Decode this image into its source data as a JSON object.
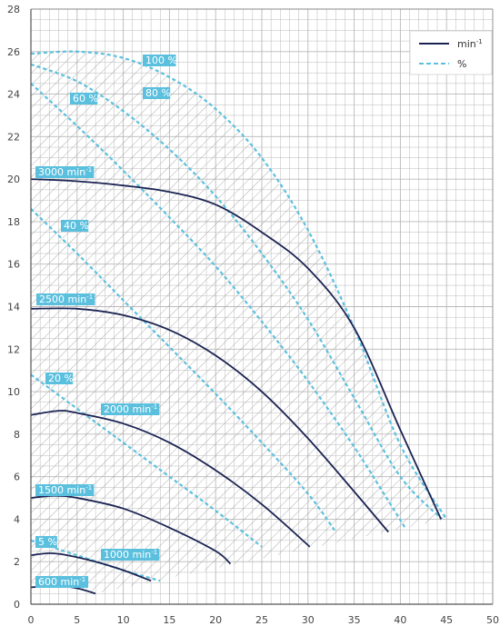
{
  "chart_data": {
    "type": "line",
    "xlim": [
      0,
      50
    ],
    "ylim": [
      0,
      28
    ],
    "x_ticks": [
      "0",
      "5",
      "10",
      "15",
      "20",
      "25",
      "30",
      "35",
      "40",
      "45",
      "50"
    ],
    "y_ticks": [
      "0",
      "2",
      "4",
      "6",
      "8",
      "10",
      "12",
      "14",
      "16",
      "18",
      "20",
      "22",
      "24",
      "26",
      "28"
    ],
    "grid": true,
    "legend_position": "top-right",
    "legend": [
      {
        "label": "min",
        "sup": "-1",
        "style": "solid",
        "color": "#1b2352"
      },
      {
        "label": "%",
        "style": "dashed",
        "color": "#5bc0de"
      }
    ],
    "colors": {
      "speed": "#1b2352",
      "efficiency": "#5bc0de",
      "tag_bg": "#5bc0de",
      "grid": "#b9b9b9",
      "hatch": "#9a9a9a"
    },
    "speed_curves": [
      {
        "label": "3000 min",
        "sup": "-1",
        "points": [
          [
            0,
            20.0
          ],
          [
            5,
            19.9
          ],
          [
            10,
            19.7
          ],
          [
            15,
            19.4
          ],
          [
            20,
            18.8
          ],
          [
            25,
            17.5
          ],
          [
            30,
            15.8
          ],
          [
            35,
            13.0
          ],
          [
            40,
            8.2
          ],
          [
            44.4,
            4.0
          ]
        ]
      },
      {
        "label": "2500 min",
        "sup": "-1",
        "points": [
          [
            0,
            13.9
          ],
          [
            5,
            13.9
          ],
          [
            10,
            13.6
          ],
          [
            15,
            12.9
          ],
          [
            20,
            11.7
          ],
          [
            25,
            10.0
          ],
          [
            30,
            7.8
          ],
          [
            35,
            5.3
          ],
          [
            38.7,
            3.4
          ]
        ]
      },
      {
        "label": "2000 min",
        "sup": "-1",
        "points": [
          [
            0,
            8.9
          ],
          [
            3,
            9.1
          ],
          [
            5,
            9.0
          ],
          [
            10,
            8.5
          ],
          [
            15,
            7.6
          ],
          [
            20,
            6.3
          ],
          [
            25,
            4.7
          ],
          [
            30.2,
            2.7
          ]
        ]
      },
      {
        "label": "1500 min",
        "sup": "-1",
        "points": [
          [
            0,
            5.0
          ],
          [
            2.5,
            5.1
          ],
          [
            5,
            5.0
          ],
          [
            10,
            4.5
          ],
          [
            15,
            3.6
          ],
          [
            20,
            2.5
          ],
          [
            21.6,
            1.9
          ]
        ]
      },
      {
        "label": "1000 min",
        "sup": "-1",
        "points": [
          [
            0,
            2.3
          ],
          [
            2,
            2.4
          ],
          [
            4,
            2.3
          ],
          [
            7,
            2.0
          ],
          [
            10,
            1.6
          ],
          [
            13,
            1.1
          ]
        ]
      },
      {
        "label": "600 min",
        "sup": "-1",
        "points": [
          [
            0,
            0.8
          ],
          [
            3,
            0.85
          ],
          [
            5,
            0.75
          ],
          [
            7,
            0.5
          ]
        ]
      }
    ],
    "efficiency_curves": [
      {
        "label": "100 %",
        "points": [
          [
            0,
            25.9
          ],
          [
            5,
            26.0
          ],
          [
            10,
            25.7
          ],
          [
            15,
            24.8
          ],
          [
            20,
            23.3
          ],
          [
            25,
            21.0
          ],
          [
            30,
            17.6
          ],
          [
            35,
            13.0
          ],
          [
            40,
            7.5
          ],
          [
            45,
            4.0
          ]
        ]
      },
      {
        "label": "80 %",
        "points": [
          [
            0,
            25.4
          ],
          [
            5,
            24.6
          ],
          [
            10,
            23.2
          ],
          [
            15,
            21.4
          ],
          [
            20,
            19.2
          ],
          [
            25,
            16.5
          ],
          [
            30,
            13.4
          ],
          [
            35,
            9.7
          ],
          [
            40,
            6.0
          ],
          [
            44.5,
            4.0
          ]
        ]
      },
      {
        "label": "60 %",
        "points": [
          [
            0,
            24.5
          ],
          [
            5,
            22.5
          ],
          [
            10,
            20.4
          ],
          [
            15,
            18.2
          ],
          [
            20,
            15.9
          ],
          [
            25,
            13.3
          ],
          [
            30,
            10.5
          ],
          [
            35,
            7.4
          ],
          [
            38.5,
            5.0
          ],
          [
            40.5,
            3.6
          ]
        ]
      },
      {
        "label": "40 %",
        "points": [
          [
            0,
            18.6
          ],
          [
            5,
            16.5
          ],
          [
            10,
            14.3
          ],
          [
            15,
            12.1
          ],
          [
            20,
            9.9
          ],
          [
            25,
            7.6
          ],
          [
            30,
            5.2
          ],
          [
            33,
            3.4
          ]
        ]
      },
      {
        "label": "20 %",
        "points": [
          [
            0,
            10.8
          ],
          [
            5,
            9.2
          ],
          [
            10,
            7.6
          ],
          [
            15,
            6.0
          ],
          [
            20,
            4.4
          ],
          [
            25,
            2.7
          ]
        ]
      },
      {
        "label": "5 %",
        "points": [
          [
            0,
            3.0
          ],
          [
            5,
            2.3
          ],
          [
            10,
            1.6
          ],
          [
            14,
            1.1
          ]
        ]
      }
    ],
    "operating_region": [
      [
        0,
        0.8
      ],
      [
        3,
        0.85
      ],
      [
        5,
        0.75
      ],
      [
        7,
        0.5
      ],
      [
        45,
        4.0
      ],
      [
        40,
        7.5
      ],
      [
        35,
        13.0
      ],
      [
        30,
        17.6
      ],
      [
        25,
        21.0
      ],
      [
        20,
        23.3
      ],
      [
        15,
        24.8
      ],
      [
        10,
        25.7
      ],
      [
        5,
        26.0
      ],
      [
        0,
        25.9
      ]
    ]
  }
}
